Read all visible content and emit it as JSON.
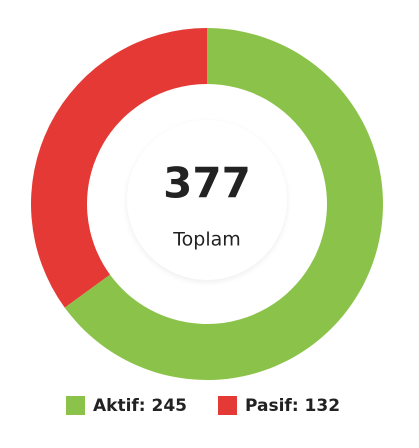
{
  "chart_data": {
    "type": "donut",
    "total": 377,
    "total_label": "Toplam",
    "values": [
      245,
      132
    ],
    "value_labels": [
      "Aktif: 245",
      "Pasif: 132"
    ],
    "colors": [
      "#8bc34a",
      "#e53935"
    ]
  }
}
